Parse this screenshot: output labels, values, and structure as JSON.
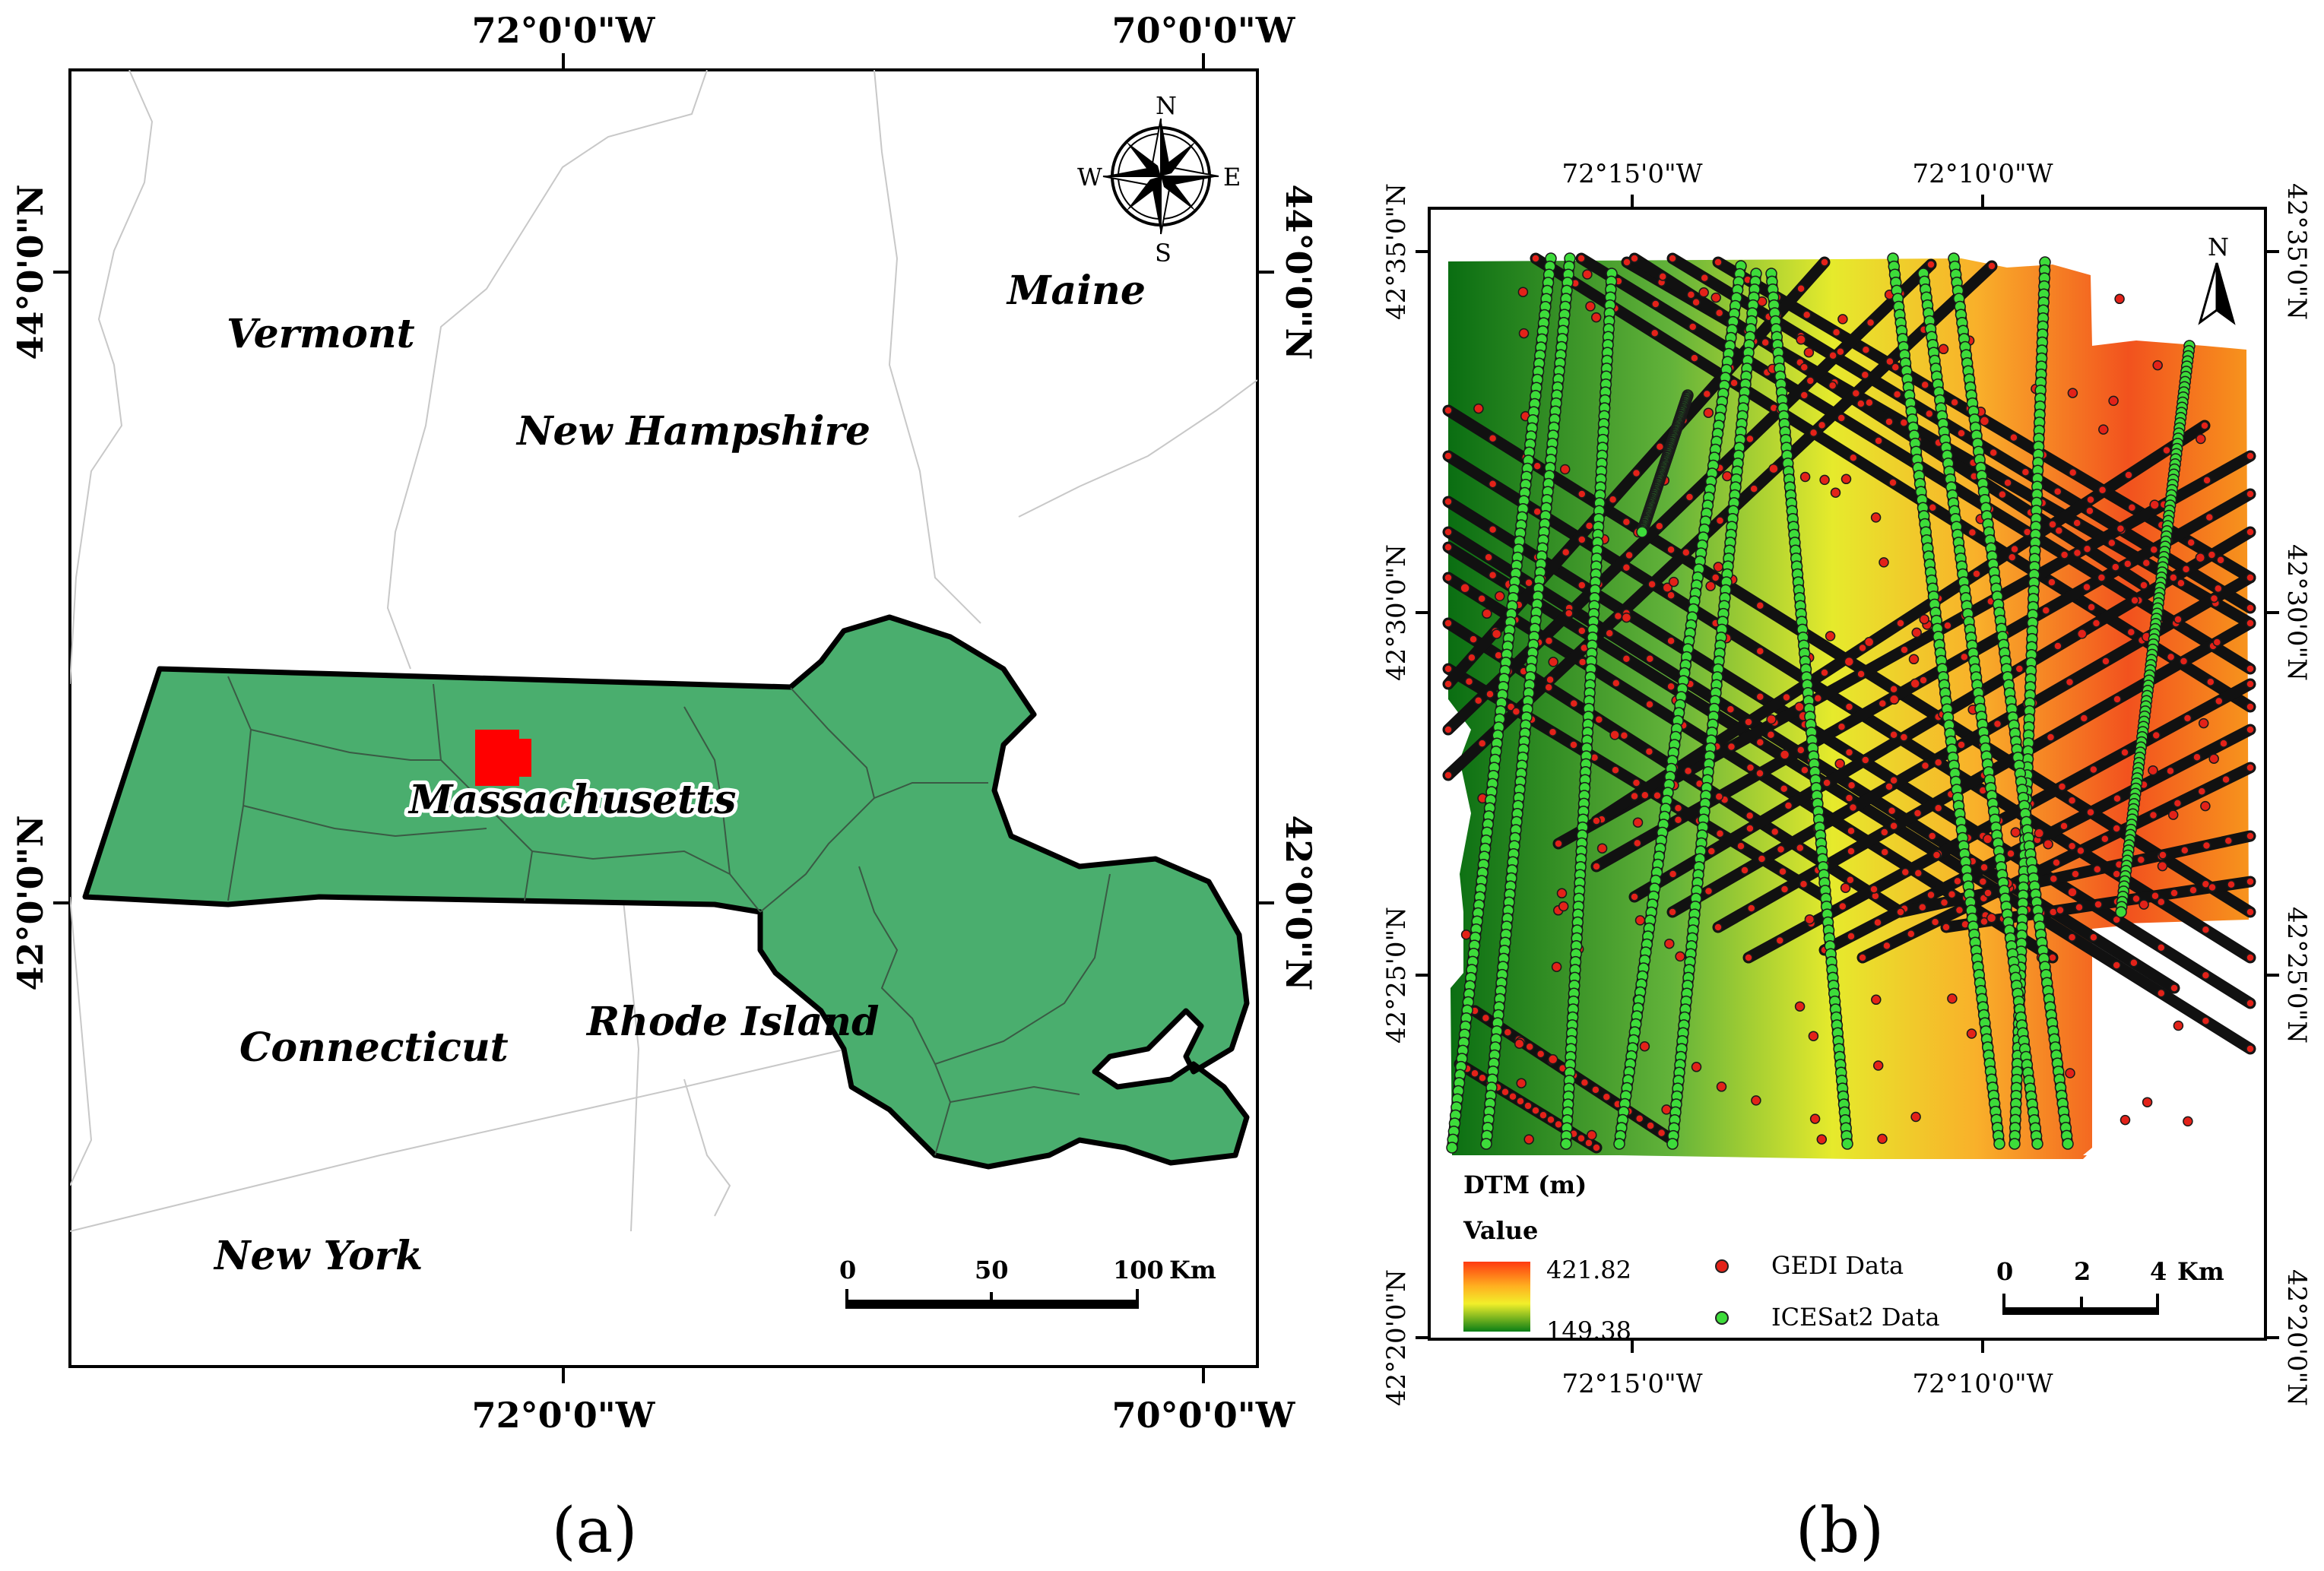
{
  "panel_a": {
    "label": "(a)",
    "top_lon_labels": [
      "72°0'0\"W",
      "70°0'0\"W"
    ],
    "bottom_lon_labels": [
      "72°0'0\"W",
      "70°0'0\"W"
    ],
    "left_lat_labels": [
      "44°0'0\"N",
      "42°0'0\"N"
    ],
    "right_lat_labels": [
      "44°0'0\"N",
      "42°0'0\"N"
    ],
    "states": {
      "vermont": "Vermont",
      "new_hampshire": "New Hampshire",
      "maine": "Maine",
      "massachusetts": "Massachusetts",
      "connecticut": "Connecticut",
      "rhode_island": "Rhode Island",
      "new_york": "New York"
    },
    "compass": {
      "n": "N",
      "s": "S",
      "e": "E",
      "w": "W"
    },
    "scale_bar": {
      "ticks": [
        "0",
        "50",
        "100"
      ],
      "unit": "Km"
    },
    "colors": {
      "massachusetts": "#4aae6e",
      "study_area": "#ff0000"
    }
  },
  "panel_b": {
    "label": "(b)",
    "top_lon_labels": [
      "72°15'0\"W",
      "72°10'0\"W"
    ],
    "bottom_lon_labels": [
      "72°15'0\"W",
      "72°10'0\"W"
    ],
    "left_lat_labels": [
      "42°35'0\"N",
      "42°30'0\"N",
      "42°25'0\"N",
      "42°20'0\"N"
    ],
    "right_lat_labels": [
      "42°35'0\"N",
      "42°30'0\"N",
      "42°25'0\"N",
      "42°20'0\"N"
    ],
    "north_arrow": "N",
    "legend": {
      "dtm_title": "DTM (m)",
      "value_title": "Value",
      "max": "421.82",
      "min": "149.38",
      "gedi": "GEDI Data",
      "icesat": "ICESat2 Data"
    },
    "scale_bar": {
      "ticks": [
        "0",
        "2",
        "4"
      ],
      "unit": "Km"
    },
    "colors": {
      "gedi": "#e32219",
      "icesat": "#3ddc3a",
      "track": "#111111"
    }
  }
}
